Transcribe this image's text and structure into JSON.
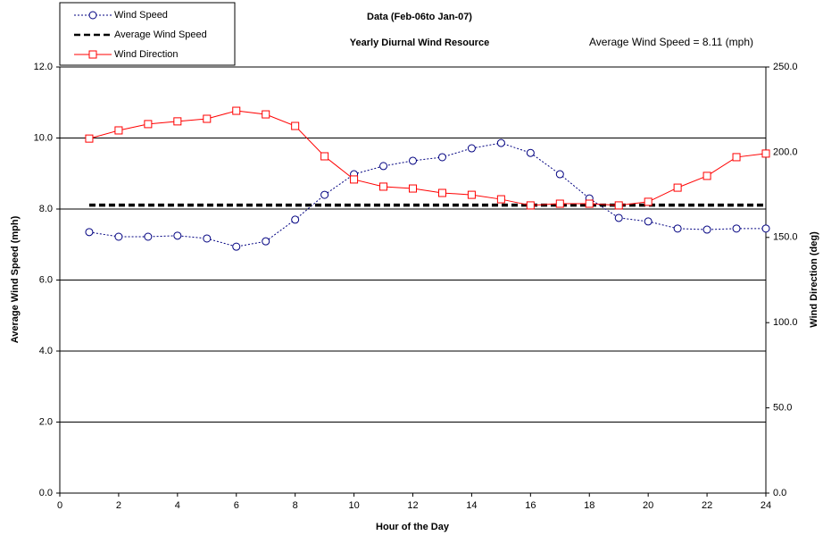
{
  "chart_data": {
    "type": "line",
    "title": "Data (Feb-06to Jan-07)",
    "subtitle": "Yearly Diurnal Wind Resource",
    "annotation": "Average Wind Speed = 8.11 (mph)",
    "x_label": "Hour of the Day",
    "y_label": "Average Wind Speed (mph)",
    "y2_label": "Wind Direction (deg)",
    "x": [
      1,
      2,
      3,
      4,
      5,
      6,
      7,
      8,
      9,
      10,
      11,
      12,
      13,
      14,
      15,
      16,
      17,
      18,
      19,
      20,
      21,
      22,
      23,
      24
    ],
    "xlim": [
      0,
      24
    ],
    "xticks": [
      0,
      2,
      4,
      6,
      8,
      10,
      12,
      14,
      16,
      18,
      20,
      22,
      24
    ],
    "ylim": [
      0,
      12
    ],
    "yticks": [
      {
        "value": 0,
        "label": "0.0"
      },
      {
        "value": 2,
        "label": "2.0"
      },
      {
        "value": 4,
        "label": "4.0"
      },
      {
        "value": 6,
        "label": "6.0"
      },
      {
        "value": 8,
        "label": "8.0"
      },
      {
        "value": 10,
        "label": "10.0"
      },
      {
        "value": 12,
        "label": "12.0"
      }
    ],
    "y2lim": [
      0,
      250
    ],
    "y2ticks": [
      {
        "value": 0,
        "label": "0.0"
      },
      {
        "value": 50,
        "label": "50.0"
      },
      {
        "value": 100,
        "label": "100.0"
      },
      {
        "value": 150,
        "label": "150.0"
      },
      {
        "value": 200,
        "label": "200.0"
      },
      {
        "value": 250,
        "label": "250.0"
      }
    ],
    "grid": true,
    "legend": "top-left",
    "series": [
      {
        "name": "Wind Speed",
        "color": "#000080",
        "marker": "circle",
        "dash": "dotted",
        "values": [
          7.35,
          7.22,
          7.22,
          7.25,
          7.17,
          6.94,
          7.09,
          7.7,
          8.4,
          8.98,
          9.21,
          9.36,
          9.46,
          9.71,
          9.86,
          9.58,
          8.98,
          8.3,
          7.75,
          7.65,
          7.45,
          7.42,
          7.45,
          7.45
        ]
      },
      {
        "name": "Average Wind Speed",
        "color": "#000000",
        "dash": "dashed",
        "x": [
          1,
          24
        ],
        "values": [
          8.11,
          8.11
        ]
      },
      {
        "name": "Wind Direction",
        "color": "#ff0000",
        "marker": "square",
        "axis": "y2",
        "values": [
          208.0,
          212.8,
          216.5,
          218.1,
          219.6,
          224.3,
          222.2,
          215.4,
          197.6,
          184.0,
          179.8,
          178.7,
          176.1,
          175.0,
          172.4,
          168.8,
          169.8,
          169.8,
          168.8,
          170.9,
          179.2,
          186.1,
          197.1,
          199.2
        ]
      }
    ]
  }
}
